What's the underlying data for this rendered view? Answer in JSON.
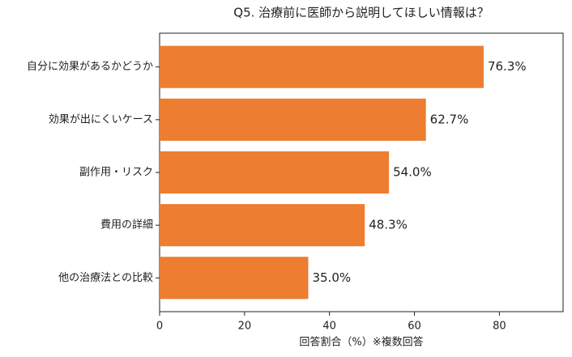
{
  "chart_data": {
    "type": "barh",
    "title": "Q5. 治療前に医師から説明してほしい情報は？",
    "categories": [
      "自分に効果があるかどうか",
      "効果が出にくいケース",
      "副作用・リスク",
      "費用の詳細",
      "他の治療法との比較"
    ],
    "values": [
      76.3,
      62.7,
      54.0,
      48.3,
      35.0
    ],
    "value_labels": [
      "76.3%",
      "62.7%",
      "54.0%",
      "48.3%",
      "35.0%"
    ],
    "color": "#ed7d31",
    "xlabel": "回答割合（%）※複数回答",
    "xlim": [
      0,
      95
    ],
    "xticks": [
      0,
      20,
      40,
      60,
      80
    ],
    "grid": false
  }
}
